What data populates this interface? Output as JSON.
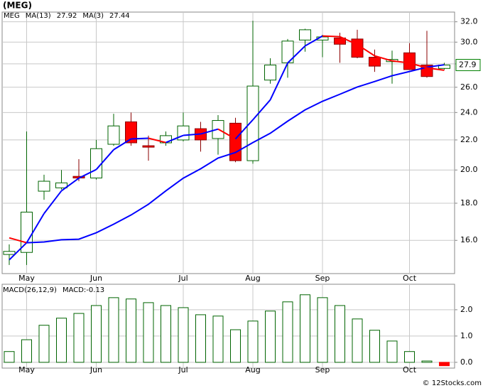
{
  "chart_data": [
    {
      "type": "candlestick",
      "title": "(MEG)",
      "name": "MEG",
      "categories": [
        null,
        "May",
        null,
        null,
        null,
        "Jun",
        null,
        null,
        null,
        null,
        "Jul",
        null,
        null,
        null,
        "Aug",
        null,
        null,
        null,
        "Sep",
        null,
        null,
        null,
        null,
        "Oct",
        null,
        null
      ],
      "open": [
        15.3,
        15.4,
        18.7,
        18.9,
        19.6,
        19.5,
        21.7,
        23.3,
        21.6,
        21.8,
        22.0,
        22.8,
        22.1,
        23.2,
        20.6,
        26.6,
        28.1,
        30.2,
        30.2,
        30.4,
        30.3,
        28.6,
        28.2,
        29.0,
        27.9,
        27.6
      ],
      "high": [
        15.8,
        22.6,
        19.7,
        20.0,
        20.7,
        22.0,
        23.9,
        24.0,
        22.3,
        22.6,
        24.0,
        23.3,
        23.8,
        23.6,
        32.1,
        28.5,
        30.3,
        31.3,
        30.7,
        30.9,
        31.2,
        29.3,
        29.2,
        29.9,
        31.1,
        28.1
      ],
      "low": [
        14.8,
        14.8,
        18.2,
        18.8,
        19.3,
        19.4,
        21.6,
        21.6,
        20.6,
        21.6,
        21.9,
        21.2,
        21.0,
        20.5,
        20.4,
        26.3,
        26.8,
        29.1,
        28.6,
        28.1,
        28.5,
        27.3,
        26.3,
        27.5,
        26.8,
        27.5
      ],
      "close": [
        15.45,
        17.5,
        19.3,
        19.2,
        19.5,
        21.4,
        23.0,
        21.8,
        21.5,
        22.3,
        23.0,
        22.0,
        23.4,
        20.6,
        26.1,
        27.9,
        30.1,
        31.2,
        30.5,
        29.8,
        28.6,
        27.8,
        28.4,
        27.5,
        26.9,
        27.9
      ],
      "up_color": "#ffffff",
      "down_color": "#ff0000",
      "name_color": "#008000",
      "series": [
        {
          "name": "MA(13)",
          "color": "#0000ff",
          "values": [
            15.04,
            15.88,
            15.92,
            16.03,
            16.06,
            16.39,
            16.84,
            17.34,
            17.94,
            18.72,
            19.49,
            20.08,
            20.77,
            21.14,
            21.82,
            22.47,
            23.35,
            24.2,
            24.87,
            25.43,
            26.02,
            26.48,
            26.97,
            27.33,
            27.71,
            27.92
          ]
        },
        {
          "name": "MA(3)",
          "color": "#0000ff",
          "down_color": "#ff0000",
          "values": [
            16.13,
            15.88,
            17.42,
            18.72,
            19.49,
            20.03,
            21.33,
            22.07,
            22.12,
            21.82,
            22.32,
            22.42,
            22.77,
            22.07,
            23.45,
            24.98,
            28.08,
            29.64,
            30.59,
            30.52,
            29.77,
            28.72,
            28.27,
            28.08,
            27.65,
            27.44
          ]
        }
      ],
      "ylim": [
        14.4,
        33.0
      ],
      "log_scale": true,
      "grid": true,
      "yticks": [
        {
          "value": 16,
          "label": "16.0"
        },
        {
          "value": 18,
          "label": "18.0"
        },
        {
          "value": 20,
          "label": "20.0"
        },
        {
          "value": 22,
          "label": "22.0"
        },
        {
          "value": 24,
          "label": "24.0"
        },
        {
          "value": 26,
          "label": "26.0"
        },
        {
          "value": 28,
          "label": "28.0"
        },
        {
          "value": 30,
          "label": "30.0"
        },
        {
          "value": 32,
          "label": "32.0"
        }
      ]
    },
    {
      "type": "bar",
      "title": "MACD(26,12,9)",
      "annotation": "MACD:-0.13",
      "categories": [
        null,
        "May",
        null,
        null,
        null,
        "Jun",
        null,
        null,
        null,
        null,
        "Jul",
        null,
        null,
        null,
        "Aug",
        null,
        null,
        null,
        "Sep",
        null,
        null,
        null,
        null,
        "Oct",
        null,
        null
      ],
      "values": [
        0.41,
        0.86,
        1.41,
        1.68,
        1.86,
        2.16,
        2.46,
        2.41,
        2.27,
        2.16,
        2.08,
        1.81,
        1.76,
        1.24,
        1.57,
        1.95,
        2.3,
        2.57,
        2.46,
        2.16,
        1.65,
        1.22,
        0.81,
        0.41,
        0.05,
        -0.13
      ],
      "color": "#006400",
      "negative_color": "#ff0000",
      "ylim": [
        -0.22,
        2.97
      ],
      "grid": true,
      "yticks": [
        {
          "value": 0,
          "label": "0.0"
        },
        {
          "value": 1,
          "label": "1.0"
        },
        {
          "value": 2,
          "label": "2.0"
        }
      ]
    }
  ],
  "footer": "© 12Stocks.com"
}
